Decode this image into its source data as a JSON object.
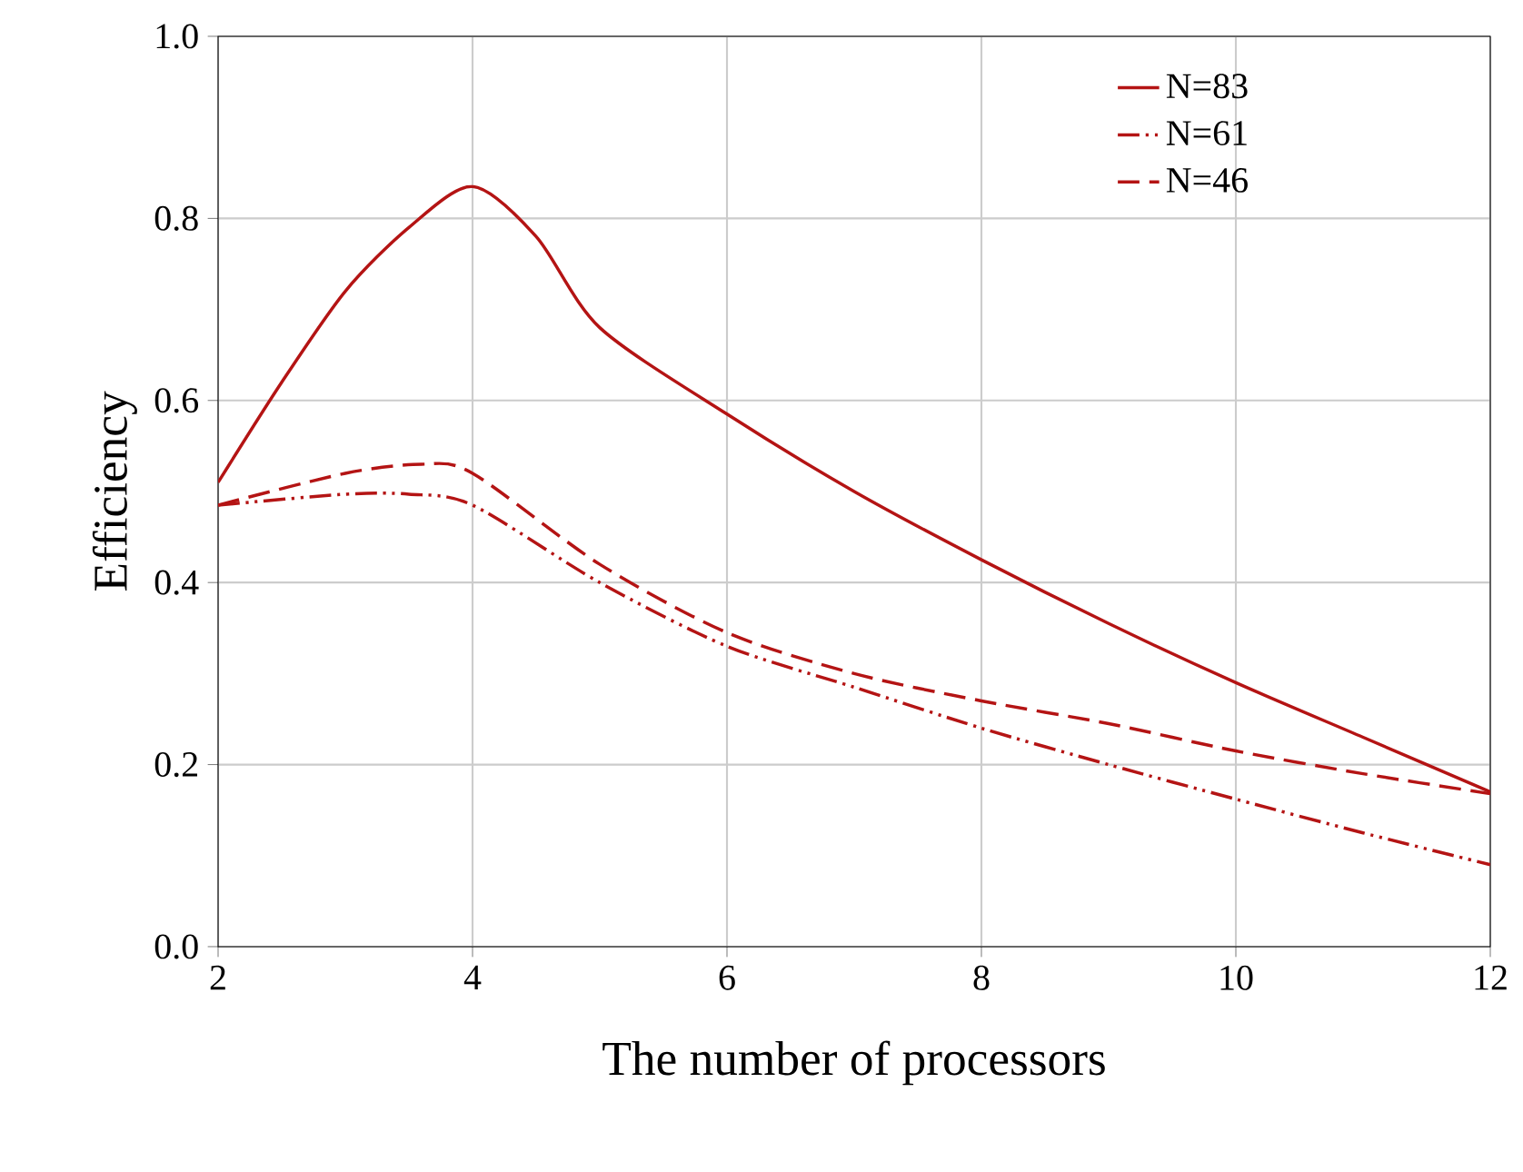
{
  "chart_data": {
    "type": "line",
    "xlabel": "The number of processors",
    "ylabel": "Efficiency",
    "xlim": [
      2,
      12
    ],
    "xticks": [
      2,
      4,
      6,
      8,
      10,
      12
    ],
    "ylim": [
      0,
      1
    ],
    "yticks": [
      {
        "value": 0,
        "label": "0.0"
      },
      {
        "value": 0.2,
        "label": "0.2"
      },
      {
        "value": 0.4,
        "label": "0.4"
      },
      {
        "value": 0.6,
        "label": "0.6"
      },
      {
        "value": 0.8,
        "label": "0.8"
      },
      {
        "value": 1,
        "label": "1.0"
      }
    ],
    "grid": true,
    "legend": "top right",
    "marker": "none",
    "series": [
      {
        "name": "N=83",
        "color": "#b41414",
        "line_style": "solid",
        "x": [
          2,
          2.5,
          3,
          3.5,
          4,
          4.5,
          5,
          6,
          7,
          8,
          9,
          10,
          11,
          12
        ],
        "values": [
          0.51,
          0.62,
          0.72,
          0.79,
          0.835,
          0.78,
          0.68,
          0.585,
          0.5,
          0.425,
          0.355,
          0.29,
          0.23,
          0.17
        ]
      },
      {
        "name": "N=61",
        "color": "#b41414",
        "line_style": "dashdot",
        "x": [
          2,
          3,
          3.5,
          4,
          5,
          6,
          7,
          8,
          9,
          10,
          11,
          12
        ],
        "values": [
          0.485,
          0.497,
          0.497,
          0.485,
          0.4,
          0.33,
          0.285,
          0.24,
          0.2,
          0.162,
          0.125,
          0.09
        ]
      },
      {
        "name": "N=46",
        "color": "#b41414",
        "line_style": "dashed",
        "x": [
          2,
          3,
          3.6,
          4,
          5,
          6,
          7,
          8,
          9,
          10,
          11,
          12
        ],
        "values": [
          0.485,
          0.52,
          0.53,
          0.52,
          0.42,
          0.345,
          0.3,
          0.27,
          0.245,
          0.215,
          0.19,
          0.168
        ]
      }
    ]
  }
}
